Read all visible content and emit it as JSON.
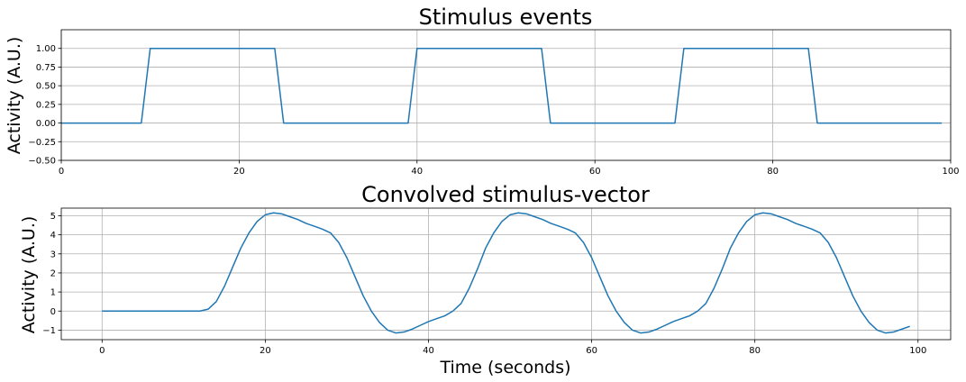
{
  "chart_data": [
    {
      "type": "line",
      "title": "Stimulus events",
      "xlabel": "",
      "ylabel": "Activity (A.U.)",
      "xlim": [
        0,
        100
      ],
      "ylim": [
        -0.5,
        1.25
      ],
      "xticks": [
        0,
        20,
        40,
        60,
        80,
        100
      ],
      "yticks": [
        -0.5,
        -0.25,
        0.0,
        0.25,
        0.5,
        0.75,
        1.0
      ],
      "ytick_labels": [
        "−0.50",
        "−0.25",
        "0.00",
        "0.25",
        "0.50",
        "0.75",
        "1.00"
      ],
      "grid": true,
      "color": "#1f77b4",
      "series": [
        {
          "x": [
            0,
            9,
            10,
            24,
            25,
            39,
            40,
            54,
            55,
            69,
            70,
            84,
            85,
            99
          ],
          "y": [
            0,
            0,
            1,
            1,
            0,
            0,
            1,
            1,
            0,
            0,
            1,
            1,
            0,
            0
          ]
        }
      ]
    },
    {
      "type": "line",
      "title": "Convolved stimulus-vector",
      "xlabel": "Time (seconds)",
      "ylabel": "Activity (A.U.)",
      "xlim": [
        -5,
        104
      ],
      "ylim": [
        -1.5,
        5.4
      ],
      "xticks": [
        0,
        20,
        40,
        60,
        80,
        100
      ],
      "yticks": [
        -1,
        0,
        1,
        2,
        3,
        4,
        5
      ],
      "ytick_labels": [
        "−1",
        "0",
        "1",
        "2",
        "3",
        "4",
        "5"
      ],
      "grid": true,
      "color": "#1f77b4",
      "series": [
        {
          "x": [
            0,
            12,
            13,
            14,
            15,
            16,
            17,
            18,
            19,
            20,
            21,
            22,
            23,
            24,
            25,
            26,
            27,
            28,
            29,
            30,
            31,
            32,
            33,
            34,
            35,
            36,
            37,
            38,
            39,
            40,
            41,
            42,
            43,
            44,
            45,
            46,
            47,
            48,
            49,
            50,
            51,
            52,
            53,
            54,
            55,
            56,
            57,
            58,
            59,
            60,
            61,
            62,
            63,
            64,
            65,
            66,
            67,
            68,
            69,
            70,
            71,
            72,
            73,
            74,
            75,
            76,
            77,
            78,
            79,
            80,
            81,
            82,
            83,
            84,
            85,
            86,
            87,
            88,
            89,
            90,
            91,
            92,
            93,
            94,
            95,
            96,
            97,
            98,
            99
          ],
          "y": [
            0,
            0,
            0.1,
            0.5,
            1.3,
            2.3,
            3.3,
            4.1,
            4.7,
            5.05,
            5.15,
            5.1,
            4.95,
            4.8,
            4.6,
            4.45,
            4.3,
            4.1,
            3.6,
            2.8,
            1.8,
            0.8,
            0.0,
            -0.6,
            -1.0,
            -1.15,
            -1.1,
            -0.95,
            -0.75,
            -0.55,
            -0.4,
            -0.25,
            0.0,
            0.4,
            1.2,
            2.2,
            3.3,
            4.1,
            4.7,
            5.05,
            5.15,
            5.1,
            4.95,
            4.8,
            4.6,
            4.45,
            4.3,
            4.1,
            3.6,
            2.8,
            1.8,
            0.8,
            0.0,
            -0.6,
            -1.0,
            -1.15,
            -1.1,
            -0.95,
            -0.75,
            -0.55,
            -0.4,
            -0.25,
            0.0,
            0.4,
            1.2,
            2.2,
            3.3,
            4.1,
            4.7,
            5.05,
            5.15,
            5.1,
            4.95,
            4.8,
            4.6,
            4.45,
            4.3,
            4.1,
            3.6,
            2.8,
            1.8,
            0.8,
            0.0,
            -0.6,
            -1.0,
            -1.15,
            -1.1,
            -0.95,
            -0.8
          ]
        }
      ]
    }
  ]
}
